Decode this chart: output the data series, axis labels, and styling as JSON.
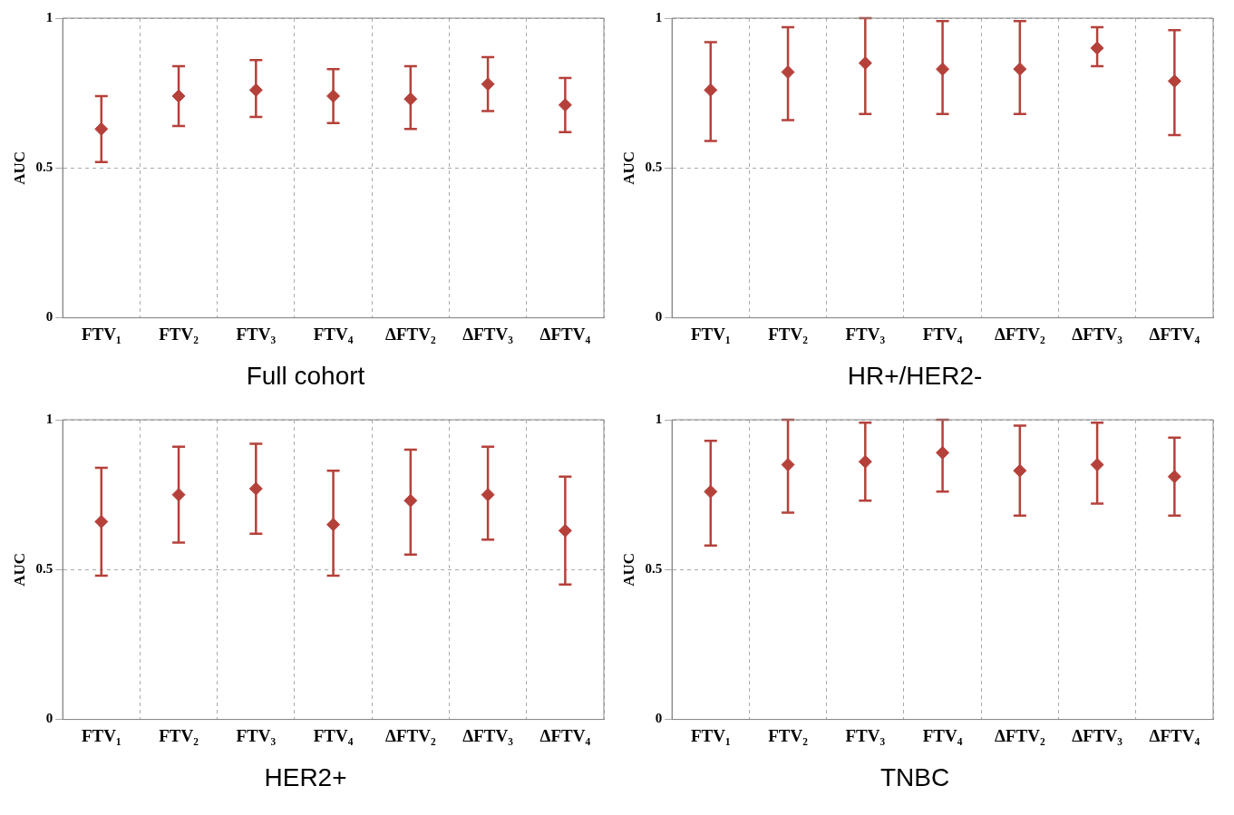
{
  "chart_data": [
    {
      "type": "scatter",
      "title": "Full cohort",
      "ylabel": "AUC",
      "categories": [
        "FTV₁",
        "FTV₂",
        "FTV₃",
        "FTV₄",
        "ΔFTV₂",
        "ΔFTV₃",
        "ΔFTV₄"
      ],
      "values": [
        0.63,
        0.74,
        0.76,
        0.74,
        0.73,
        0.78,
        0.71
      ],
      "errors": [
        [
          0.52,
          0.74
        ],
        [
          0.64,
          0.84
        ],
        [
          0.67,
          0.86
        ],
        [
          0.65,
          0.83
        ],
        [
          0.63,
          0.84
        ],
        [
          0.69,
          0.87
        ],
        [
          0.62,
          0.8
        ]
      ],
      "color": "#b5413b",
      "marker": "diamond",
      "ylim": [
        0,
        1
      ],
      "yticks": [
        0,
        0.5,
        1
      ],
      "grid": true
    },
    {
      "type": "scatter",
      "title": "HR+/HER2-",
      "ylabel": "AUC",
      "categories": [
        "FTV₁",
        "FTV₂",
        "FTV₃",
        "FTV₄",
        "ΔFTV₂",
        "ΔFTV₃",
        "ΔFTV₄"
      ],
      "values": [
        0.76,
        0.82,
        0.85,
        0.83,
        0.83,
        0.9,
        0.79
      ],
      "errors": [
        [
          0.59,
          0.92
        ],
        [
          0.66,
          0.97
        ],
        [
          0.68,
          1.0
        ],
        [
          0.68,
          0.99
        ],
        [
          0.68,
          0.99
        ],
        [
          0.84,
          0.97
        ],
        [
          0.61,
          0.96
        ]
      ],
      "color": "#b5413b",
      "marker": "diamond",
      "ylim": [
        0,
        1
      ],
      "yticks": [
        0,
        0.5,
        1
      ],
      "grid": true
    },
    {
      "type": "scatter",
      "title": "HER2+",
      "ylabel": "AUC",
      "categories": [
        "FTV₁",
        "FTV₂",
        "FTV₃",
        "FTV₄",
        "ΔFTV₂",
        "ΔFTV₃",
        "ΔFTV₄"
      ],
      "values": [
        0.66,
        0.75,
        0.77,
        0.65,
        0.73,
        0.75,
        0.63
      ],
      "errors": [
        [
          0.48,
          0.84
        ],
        [
          0.59,
          0.91
        ],
        [
          0.62,
          0.92
        ],
        [
          0.48,
          0.83
        ],
        [
          0.55,
          0.9
        ],
        [
          0.6,
          0.91
        ],
        [
          0.45,
          0.81
        ]
      ],
      "color": "#b5413b",
      "marker": "diamond",
      "ylim": [
        0,
        1
      ],
      "yticks": [
        0,
        0.5,
        1
      ],
      "grid": true
    },
    {
      "type": "scatter",
      "title": "TNBC",
      "ylabel": "AUC",
      "categories": [
        "FTV₁",
        "FTV₂",
        "FTV₃",
        "FTV₄",
        "ΔFTV₂",
        "ΔFTV₃",
        "ΔFTV₄"
      ],
      "values": [
        0.76,
        0.85,
        0.86,
        0.89,
        0.83,
        0.85,
        0.81
      ],
      "errors": [
        [
          0.58,
          0.93
        ],
        [
          0.69,
          1.0
        ],
        [
          0.73,
          0.99
        ],
        [
          0.76,
          1.0
        ],
        [
          0.68,
          0.98
        ],
        [
          0.72,
          0.99
        ],
        [
          0.68,
          0.94
        ]
      ],
      "color": "#b5413b",
      "marker": "diamond",
      "ylim": [
        0,
        1
      ],
      "yticks": [
        0,
        0.5,
        1
      ],
      "grid": true
    }
  ]
}
